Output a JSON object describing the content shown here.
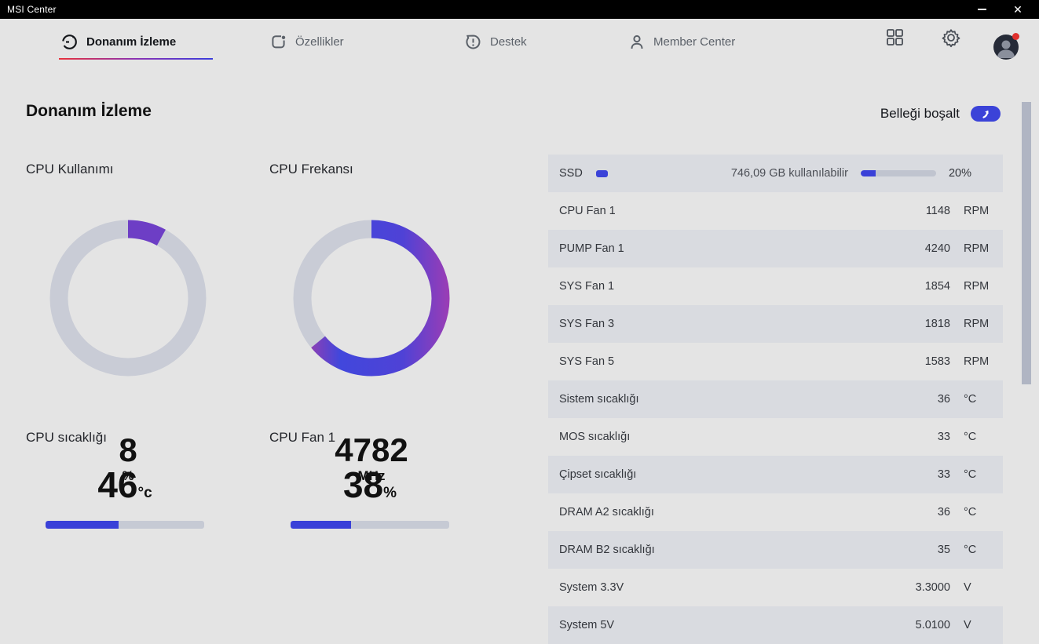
{
  "window": {
    "title": "MSI Center"
  },
  "nav": {
    "tabs": [
      {
        "label": "Donanım İzleme",
        "active": true
      },
      {
        "label": "Özellikler",
        "active": false
      },
      {
        "label": "Destek",
        "active": false
      },
      {
        "label": "Member Center",
        "active": false
      }
    ]
  },
  "page": {
    "title": "Donanım İzleme",
    "free_memory_label": "Belleği boşalt"
  },
  "gauges": [
    {
      "title": "CPU Kullanımı",
      "value": "8",
      "unit": "%",
      "percent": 8
    },
    {
      "title": "CPU Frekansı",
      "value": "4782",
      "unit": "MHz",
      "percent": 64
    }
  ],
  "bars": [
    {
      "title": "CPU sıcaklığı",
      "value": "46",
      "unit": "°c",
      "percent": 46
    },
    {
      "title": "CPU Fan 1",
      "value": "38",
      "unit": "%",
      "percent": 38
    }
  ],
  "ssd": {
    "label": "SSD",
    "available": "746,09 GB kullanılabilir",
    "percent_label": "20%",
    "percent": 20
  },
  "sensors": {
    "rows": [
      {
        "label": "CPU Fan 1",
        "value": "1148",
        "unit": "RPM"
      },
      {
        "label": "PUMP Fan 1",
        "value": "4240",
        "unit": "RPM"
      },
      {
        "label": "SYS Fan 1",
        "value": "1854",
        "unit": "RPM"
      },
      {
        "label": "SYS Fan 3",
        "value": "1818",
        "unit": "RPM"
      },
      {
        "label": "SYS Fan 5",
        "value": "1583",
        "unit": "RPM"
      },
      {
        "label": "Sistem sıcaklığı",
        "value": "36",
        "unit": "°C"
      },
      {
        "label": "MOS sıcaklığı",
        "value": "33",
        "unit": "°C"
      },
      {
        "label": "Çipset sıcaklığı",
        "value": "33",
        "unit": "°C"
      },
      {
        "label": "DRAM A2 sıcaklığı",
        "value": "36",
        "unit": "°C"
      },
      {
        "label": "DRAM B2 sıcaklığı",
        "value": "35",
        "unit": "°C"
      },
      {
        "label": "System 3.3V",
        "value": "3.3000",
        "unit": "V"
      },
      {
        "label": "System 5V",
        "value": "5.0100",
        "unit": "V"
      }
    ]
  },
  "colors": {
    "accent_blue": "#3b43d8",
    "gradient_magenta": "#b83a9c",
    "gradient_purple": "#6d3ec5",
    "underline_red": "#e8323c",
    "underline_blue": "#3c3edc",
    "row_shaded": "#d9dbe0",
    "track_gray": "#c6cad4",
    "notification_red": "#e0312e"
  }
}
